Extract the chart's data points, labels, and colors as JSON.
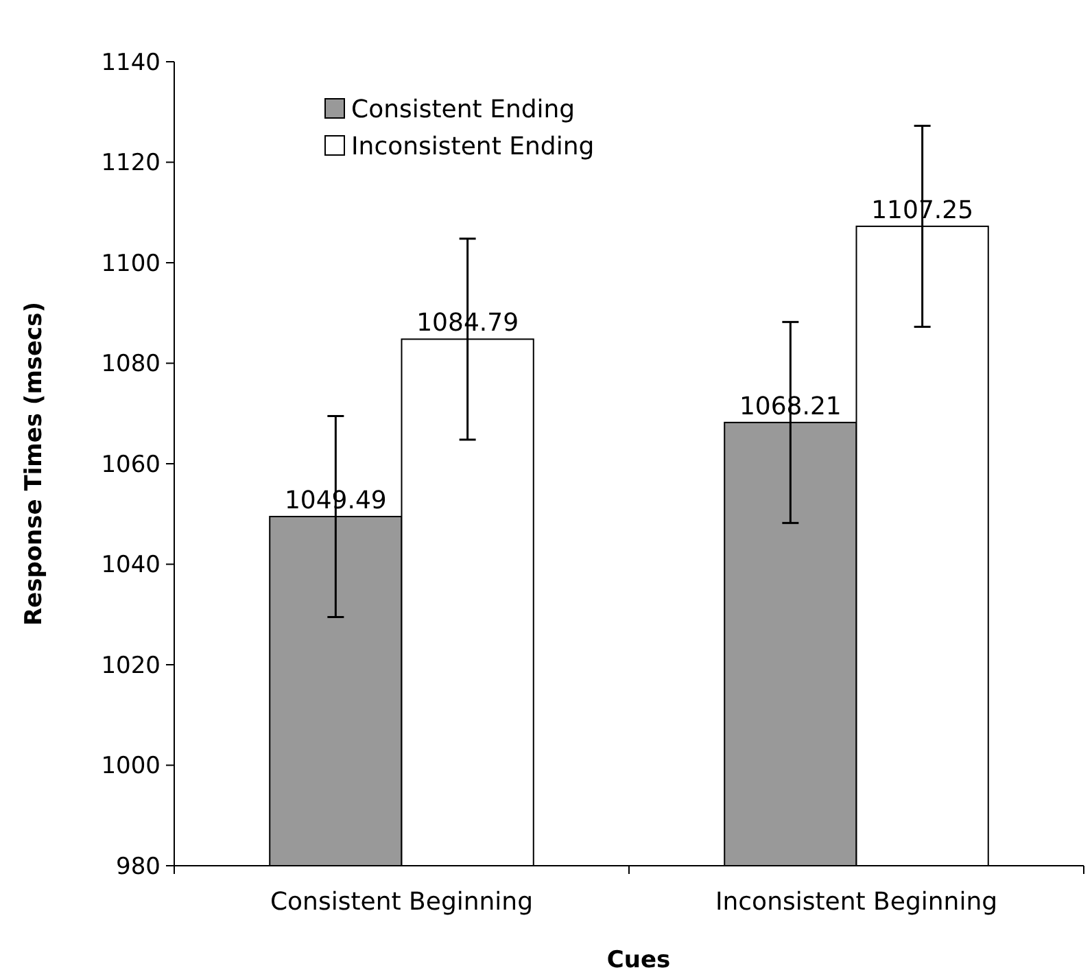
{
  "chart_data": {
    "type": "bar",
    "xlabel": "Cues",
    "ylabel": "Response Times (msecs)",
    "categories": [
      "Consistent Beginning",
      "Inconsistent Beginning"
    ],
    "series": [
      {
        "name": "Consistent Ending",
        "color": "#999999",
        "values": [
          1049.49,
          1068.21
        ],
        "errors": [
          20,
          20
        ]
      },
      {
        "name": "Inconsistent Ending",
        "color": "#ffffff",
        "values": [
          1084.79,
          1107.25
        ],
        "errors": [
          20,
          20
        ]
      }
    ],
    "ylim": [
      980,
      1140
    ],
    "yticks": [
      980,
      1000,
      1020,
      1040,
      1060,
      1080,
      1100,
      1120,
      1140
    ],
    "data_labels": true,
    "legend": "top left",
    "grid": false
  }
}
